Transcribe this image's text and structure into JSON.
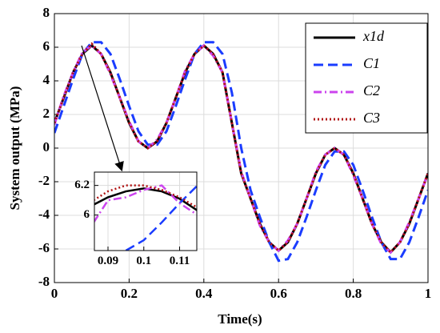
{
  "chart_data": {
    "type": "line",
    "xlabel": "Time(s)",
    "ylabel": "System output (MPa)",
    "xlim": [
      0,
      1
    ],
    "ylim": [
      -8,
      8
    ],
    "xticks": [
      0,
      0.2,
      0.4,
      0.6,
      0.8,
      1
    ],
    "yticks": [
      -8,
      -6,
      -4,
      -2,
      0,
      2,
      4,
      6,
      8
    ],
    "grid": true,
    "legend": "upper right",
    "x": [
      0,
      0.025,
      0.05,
      0.075,
      0.1,
      0.125,
      0.15,
      0.175,
      0.2,
      0.225,
      0.25,
      0.275,
      0.3,
      0.325,
      0.35,
      0.375,
      0.4,
      0.425,
      0.45,
      0.475,
      0.5,
      0.525,
      0.55,
      0.575,
      0.6,
      0.625,
      0.65,
      0.675,
      0.7,
      0.725,
      0.75,
      0.775,
      0.8,
      0.825,
      0.85,
      0.875,
      0.9,
      0.925,
      0.95,
      0.975,
      1
    ],
    "series": [
      {
        "name": "x1d",
        "color": "#000000",
        "dash": "none",
        "values": [
          1.5,
          3,
          4.5,
          5.6,
          6.1,
          5.6,
          4.5,
          3,
          1.5,
          0.4,
          0,
          0.4,
          1.5,
          3,
          4.5,
          5.6,
          6.1,
          5.6,
          4.5,
          1.5,
          -1.5,
          -3,
          -4.5,
          -5.6,
          -6.1,
          -5.6,
          -4.5,
          -3,
          -1.5,
          -0.4,
          0,
          -0.4,
          -1.5,
          -3,
          -4.5,
          -5.6,
          -6.2,
          -5.6,
          -4.5,
          -3,
          -1.5
        ]
      },
      {
        "name": "C1",
        "color": "#1a3cff",
        "dash": "12 6",
        "values": [
          0.9,
          2.5,
          4.1,
          5.6,
          6.3,
          6.3,
          5.6,
          4.1,
          2.5,
          1.0,
          0.2,
          0.2,
          1.0,
          2.5,
          4.1,
          5.6,
          6.3,
          6.3,
          5.6,
          3.3,
          0,
          -2.5,
          -4.1,
          -5.6,
          -6.7,
          -6.6,
          -5.6,
          -4.1,
          -2.5,
          -1.0,
          -0.2,
          -0.2,
          -1.0,
          -2.5,
          -4.1,
          -5.6,
          -6.6,
          -6.6,
          -5.6,
          -4.1,
          -2.5
        ]
      },
      {
        "name": "C2",
        "color": "#cc44ee",
        "dash": "10 4 2 4",
        "values": [
          1.4,
          3.1,
          4.5,
          5.7,
          6.1,
          5.6,
          4.4,
          3,
          1.6,
          0.4,
          0,
          0.5,
          1.5,
          3,
          4.6,
          5.6,
          6.1,
          5.5,
          4.5,
          1.5,
          -1.4,
          -3,
          -4.6,
          -5.6,
          -6.1,
          -5.5,
          -4.5,
          -3,
          -1.4,
          -0.4,
          0,
          -0.4,
          -1.6,
          -3,
          -4.5,
          -5.7,
          -6.2,
          -5.6,
          -4.4,
          -3,
          -1.5
        ]
      },
      {
        "name": "C3",
        "color": "#b01010",
        "dash": "2 3",
        "values": [
          1.5,
          3,
          4.5,
          5.6,
          6.2,
          5.6,
          4.5,
          3,
          1.5,
          0.4,
          0,
          0.4,
          1.5,
          3,
          4.5,
          5.6,
          6.1,
          5.6,
          4.5,
          1.5,
          -1.5,
          -3,
          -4.5,
          -5.6,
          -6.1,
          -5.6,
          -4.5,
          -3,
          -1.5,
          -0.4,
          0,
          -0.4,
          -1.5,
          -3,
          -4.5,
          -5.6,
          -6.2,
          -5.6,
          -4.5,
          -3,
          -1.5
        ]
      }
    ],
    "inset": {
      "xlim": [
        0.0862,
        0.1148
      ],
      "ylim": [
        5.76,
        6.29
      ],
      "xticks": [
        0.09,
        0.1,
        0.11
      ],
      "yticks": [
        6,
        6.2
      ],
      "x": [
        0.086,
        0.09,
        0.095,
        0.1,
        0.105,
        0.11,
        0.115
      ],
      "series": [
        {
          "values": [
            6.07,
            6.12,
            6.16,
            6.18,
            6.16,
            6.11,
            6.03
          ]
        },
        {
          "values": [
            null,
            null,
            5.76,
            5.83,
            5.95,
            6.08,
            6.2
          ]
        },
        {
          "values": [
            5.95,
            6.1,
            6.12,
            6.17,
            6.2,
            6.08,
            6.0
          ]
        },
        {
          "values": [
            6.1,
            6.16,
            6.2,
            6.2,
            6.17,
            6.12,
            6.05
          ]
        }
      ]
    }
  }
}
